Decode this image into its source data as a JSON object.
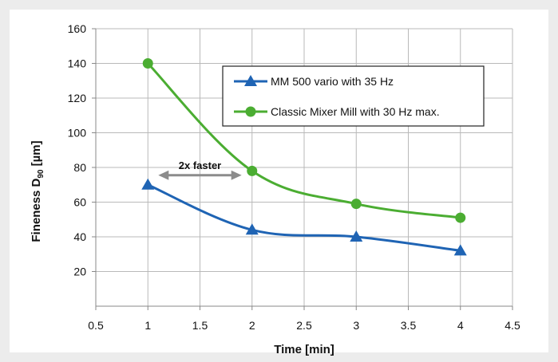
{
  "chart_data": {
    "type": "line",
    "title": "",
    "xlabel": "Time [min]",
    "ylabel": {
      "main": "Fineness D",
      "subscript": "90",
      "unit": " [µm]"
    },
    "xlim": [
      0.5,
      4.5
    ],
    "ylim": [
      0,
      160
    ],
    "xticks": [
      0.5,
      1,
      1.5,
      2,
      2.5,
      3,
      3.5,
      4,
      4.5
    ],
    "xtick_labels": [
      "0.5",
      "1",
      "1.5",
      "2",
      "2.5",
      "3",
      "3.5",
      "4",
      "4.5"
    ],
    "yticks": [
      20,
      40,
      60,
      80,
      100,
      120,
      140,
      160
    ],
    "ytick_labels": [
      "20",
      "40",
      "60",
      "80",
      "100",
      "120",
      "140",
      "160"
    ],
    "grid": true,
    "legend_position": "top-right",
    "series": [
      {
        "name": "MM 500 vario with 35 Hz",
        "color": "#1f64b4",
        "marker": "triangle",
        "x": [
          1,
          2,
          3,
          4
        ],
        "y": [
          70,
          44,
          40,
          32
        ]
      },
      {
        "name": "Classic Mixer Mill with 30 Hz max.",
        "color": "#4bad32",
        "marker": "circle",
        "x": [
          1,
          2,
          3,
          4
        ],
        "y": [
          140,
          78,
          59,
          51
        ]
      }
    ],
    "annotations": [
      {
        "text": "2x faster",
        "arrow_from": [
          1.1,
          70
        ],
        "arrow_to": [
          1.9,
          70
        ],
        "style": "double-arrow"
      }
    ]
  }
}
